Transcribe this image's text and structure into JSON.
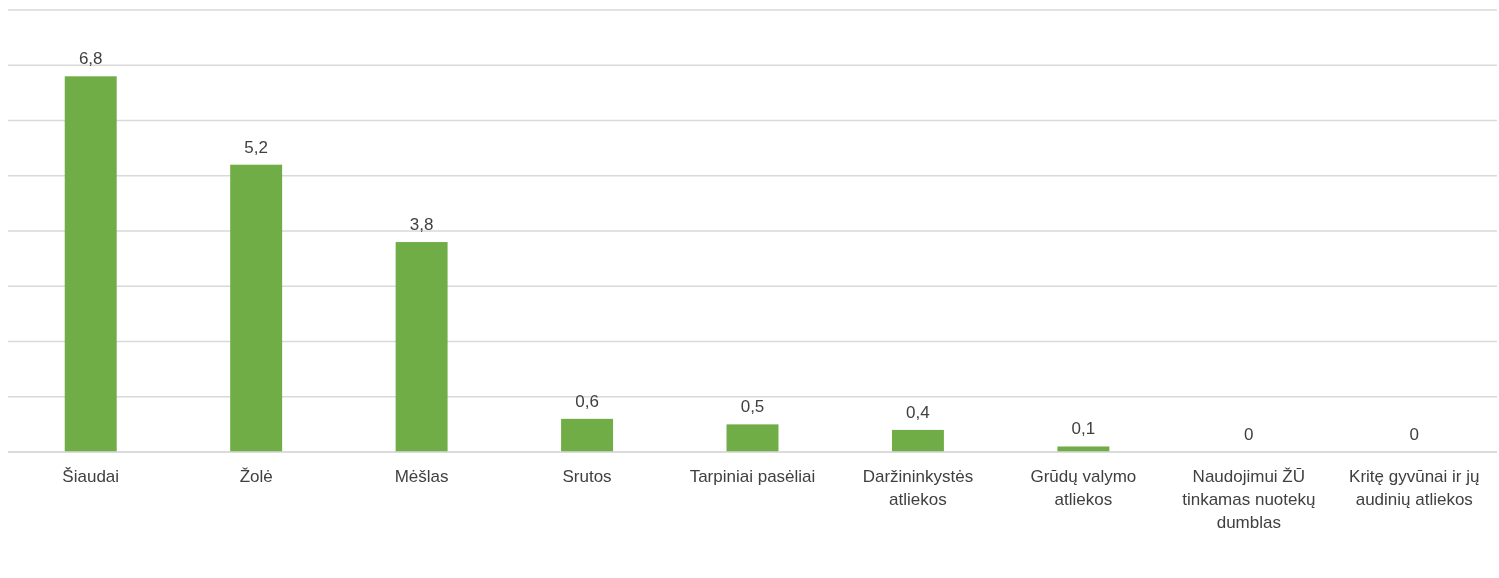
{
  "chart_data": {
    "type": "bar",
    "categories": [
      "Šiaudai",
      "Žolė",
      "Mėšlas",
      "Srutos",
      "Tarpiniai pasėliai",
      "Daržininkystės atliekos",
      "Grūdų valymo atliekos",
      "Naudojimui ŽŪ tinkamas nuotekų dumblas",
      "Kritę gyvūnai ir jų audinių atliekos"
    ],
    "values": [
      6.8,
      5.2,
      3.8,
      0.6,
      0.5,
      0.4,
      0.1,
      0,
      0
    ],
    "value_labels": [
      "6,8",
      "5,2",
      "3,8",
      "0,6",
      "0,5",
      "0,4",
      "0,1",
      "0",
      "0"
    ],
    "color": "#70ad47",
    "ylim": [
      0,
      8
    ],
    "yticks": [
      {
        "value": 0,
        "label": null
      },
      {
        "value": 1,
        "label": null
      },
      {
        "value": 2,
        "label": null
      },
      {
        "value": 3,
        "label": null
      },
      {
        "value": 4,
        "label": null
      },
      {
        "value": 5,
        "label": null
      },
      {
        "value": 6,
        "label": null
      },
      {
        "value": 7,
        "label": null
      },
      {
        "value": 8,
        "label": null
      }
    ],
    "grid": "y",
    "tick_labels": "x"
  }
}
